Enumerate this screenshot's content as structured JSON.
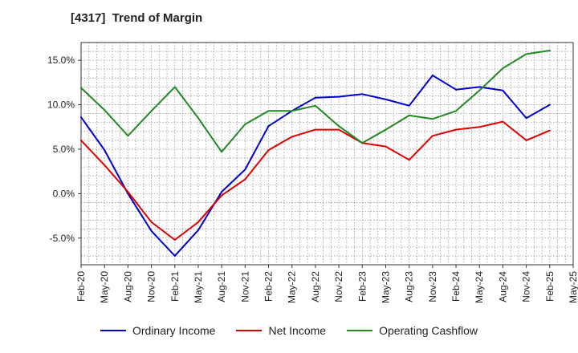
{
  "title": "[4317]  Trend of Margin",
  "chart_data": {
    "type": "line",
    "title": "[4317]  Trend of Margin",
    "categories": [
      "Feb-20",
      "May-20",
      "Aug-20",
      "Nov-20",
      "Feb-21",
      "May-21",
      "Aug-21",
      "Nov-21",
      "Feb-22",
      "May-22",
      "Aug-22",
      "Nov-22",
      "Feb-23",
      "May-23",
      "Aug-23",
      "Nov-23",
      "Feb-24",
      "May-24",
      "Aug-24",
      "Nov-24",
      "Feb-25",
      "May-25"
    ],
    "ylim": [
      -8,
      17
    ],
    "yticks": [
      -5.0,
      0.0,
      5.0,
      10.0,
      15.0
    ],
    "ytick_labels": [
      "-5.0%",
      "0.0%",
      "5.0%",
      "10.0%",
      "15.0%"
    ],
    "grid": true,
    "legend_position": "bottom",
    "series": [
      {
        "name": "Ordinary Income",
        "color": "#0000cc",
        "values": [
          8.6,
          4.9,
          0.0,
          -4.2,
          -7.0,
          -4.1,
          0.2,
          2.7,
          7.6,
          9.3,
          10.8,
          10.9,
          11.2,
          10.6,
          9.9,
          13.3,
          11.7,
          12.0,
          11.6,
          8.5,
          10.0,
          null
        ]
      },
      {
        "name": "Net Income",
        "color": "#dd0000",
        "values": [
          6.0,
          3.2,
          0.2,
          -3.2,
          -5.2,
          -3.2,
          -0.2,
          1.6,
          4.9,
          6.4,
          7.2,
          7.2,
          5.7,
          5.3,
          3.8,
          6.5,
          7.2,
          7.5,
          8.1,
          6.0,
          7.1,
          null
        ]
      },
      {
        "name": "Operating Cashflow",
        "color": "#228822",
        "values": [
          11.9,
          9.4,
          6.5,
          9.3,
          12.0,
          8.5,
          4.7,
          7.8,
          9.3,
          9.3,
          9.9,
          7.6,
          5.7,
          7.2,
          8.8,
          8.4,
          9.3,
          11.6,
          14.1,
          15.7,
          16.1,
          null
        ]
      }
    ]
  }
}
